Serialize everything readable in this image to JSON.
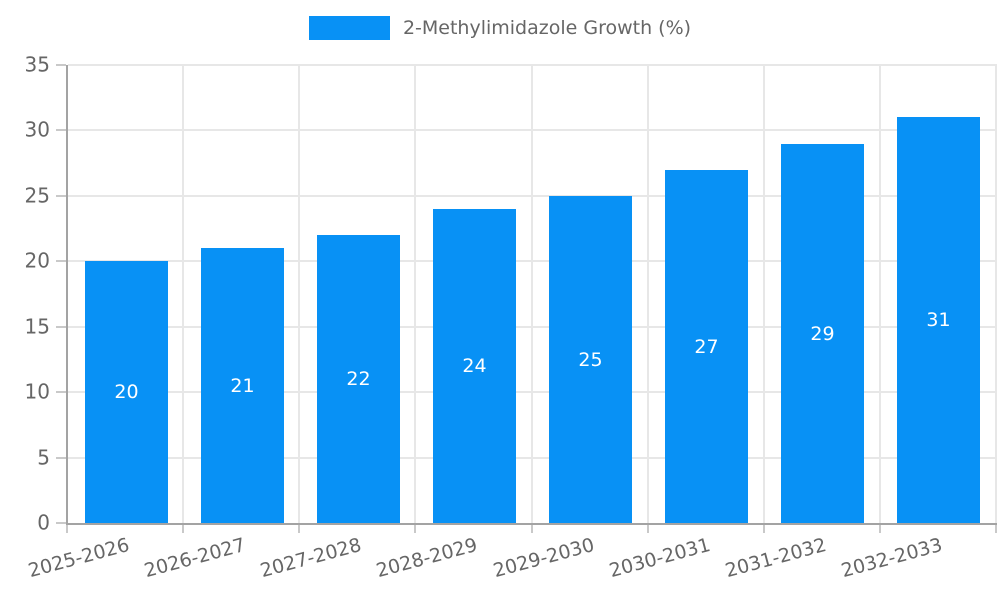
{
  "chart_data": {
    "type": "bar",
    "series_name": "2-Methylimidazole Growth (%)",
    "categories": [
      "2025-2026",
      "2026-2027",
      "2027-2028",
      "2028-2029",
      "2029-2030",
      "2030-2031",
      "2031-2032",
      "2032-2033"
    ],
    "values": [
      20,
      21,
      22,
      24,
      25,
      27,
      29,
      31
    ],
    "value_labels": [
      "20",
      "21",
      "22",
      "24",
      "25",
      "27",
      "29",
      "31"
    ],
    "xlabel": "",
    "ylabel": "",
    "ylim": [
      0,
      35
    ],
    "yticks": [
      0,
      5,
      10,
      15,
      20,
      25,
      30,
      35
    ],
    "grid": "on",
    "legend_position": "top-center",
    "x_tick_rotation_deg": -15,
    "colors": {
      "bar": "#0891f5",
      "grid": "#e7e7e7",
      "axis": "#a3a3a3",
      "tick_mark": "#c9c9c9",
      "tick_text": "#666666",
      "legend_text": "#666666",
      "value_label": "#ffffff",
      "background": "#ffffff"
    }
  }
}
